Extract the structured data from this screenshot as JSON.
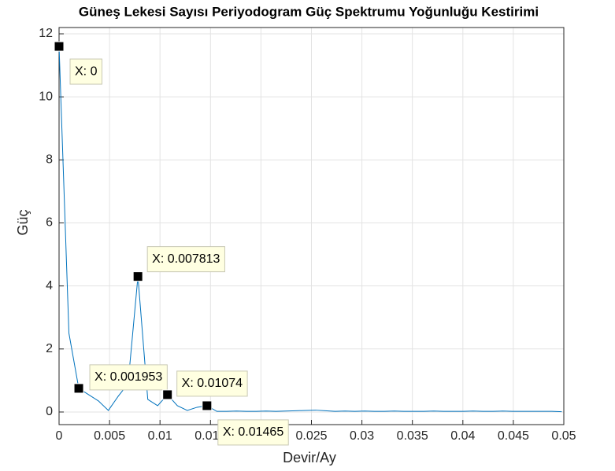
{
  "chart_data": {
    "type": "line",
    "title": "Güneş Lekesi Sayısı Periyodogram Güç Spektrumu Yoğunluğu Kestirimi",
    "x_label": "Devir/Ay",
    "y_label": "Güç",
    "x": [
      0,
      0.000977,
      0.001953,
      0.00293,
      0.003906,
      0.004883,
      0.005859,
      0.006836,
      0.007813,
      0.008789,
      0.009766,
      0.01074,
      0.01172,
      0.0127,
      0.01367,
      0.01465,
      0.01563,
      0.0166,
      0.01758,
      0.01855,
      0.01953,
      0.02051,
      0.02148,
      0.02246,
      0.02344,
      0.02441,
      0.02539,
      0.02637,
      0.02734,
      0.02832,
      0.0293,
      0.03027,
      0.03125,
      0.03223,
      0.0332,
      0.03418,
      0.03516,
      0.03613,
      0.03711,
      0.03809,
      0.03906,
      0.04004,
      0.04102,
      0.04199,
      0.04297,
      0.04395,
      0.04492,
      0.0459,
      0.04688,
      0.04785,
      0.04883,
      0.0498
    ],
    "series": [
      {
        "name": "Güç",
        "color": "#0072bd",
        "values": [
          11.6,
          2.5,
          0.75,
          0.55,
          0.35,
          0.05,
          0.5,
          0.9,
          4.3,
          0.4,
          0.2,
          0.55,
          0.2,
          0.05,
          0.15,
          0.2,
          0.02,
          0.02,
          0.03,
          0.02,
          0.02,
          0.03,
          0.02,
          0.03,
          0.04,
          0.05,
          0.06,
          0.04,
          0.02,
          0.03,
          0.02,
          0.03,
          0.02,
          0.02,
          0.03,
          0.02,
          0.02,
          0.02,
          0.03,
          0.02,
          0.02,
          0.02,
          0.03,
          0.02,
          0.02,
          0.03,
          0.02,
          0.02,
          0.02,
          0.02,
          0.02,
          0.01
        ]
      }
    ],
    "datatips": [
      {
        "label": "X: 0",
        "x": 0,
        "y": 11.6
      },
      {
        "label": "X: 0.001953",
        "x": 0.001953,
        "y": 0.75
      },
      {
        "label": "X: 0.007813",
        "x": 0.007813,
        "y": 4.3
      },
      {
        "label": "X: 0.01074",
        "x": 0.01074,
        "y": 0.55
      },
      {
        "label": "X: 0.01465",
        "x": 0.01465,
        "y": 0.2
      }
    ],
    "xlim": [
      0,
      0.05
    ],
    "ylim": [
      -0.4,
      12.2
    ],
    "xticks": [
      0,
      0.005,
      0.01,
      0.015,
      0.02,
      0.025,
      0.03,
      0.035,
      0.04,
      0.045,
      0.05
    ],
    "yticks": [
      0,
      2,
      4,
      6,
      8,
      10,
      12
    ],
    "grid": true
  }
}
